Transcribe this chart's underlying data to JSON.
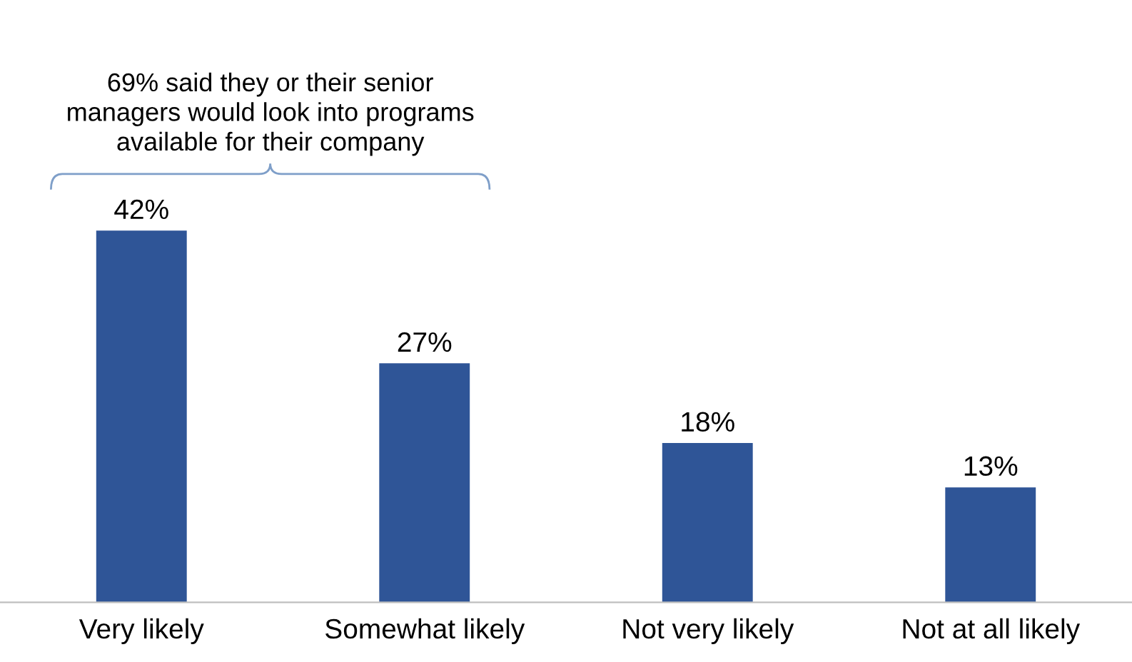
{
  "chart_data": {
    "type": "bar",
    "categories": [
      "Very likely",
      "Somewhat likely",
      "Not very likely",
      "Not at all likely"
    ],
    "values": [
      42,
      27,
      18,
      13
    ],
    "color": "#2f5597",
    "value_labels": [
      "42%",
      "27%",
      "18%",
      "13%"
    ],
    "annotations": [
      "69% said they or their senior\nmanagers would look into programs\navailable for their company"
    ],
    "grid": false,
    "legend": false
  }
}
